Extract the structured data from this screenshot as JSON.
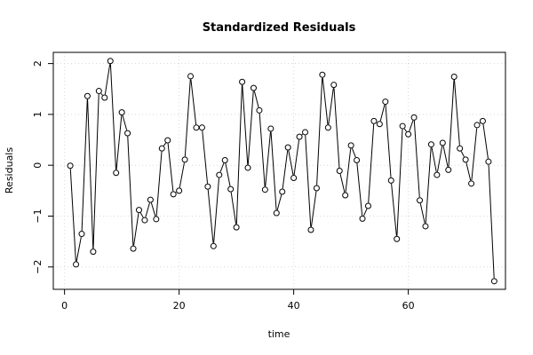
{
  "chart_data": {
    "type": "line",
    "title": "Standardized Residuals",
    "xlabel": "time",
    "ylabel": "Residuals",
    "xlim": [
      -1.96,
      76.96
    ],
    "ylim": [
      -2.44,
      2.22
    ],
    "x_ticks": [
      0,
      20,
      40,
      60
    ],
    "y_ticks": [
      -2,
      -1,
      0,
      1,
      2
    ],
    "grid": true,
    "series": [
      {
        "name": "",
        "marker": "open-circle",
        "x": [
          1,
          2,
          3,
          4,
          5,
          6,
          7,
          8,
          9,
          10,
          11,
          12,
          13,
          14,
          15,
          16,
          17,
          18,
          19,
          20,
          21,
          22,
          23,
          24,
          25,
          26,
          27,
          28,
          29,
          30,
          31,
          32,
          33,
          34,
          35,
          36,
          37,
          38,
          39,
          40,
          41,
          42,
          43,
          44,
          45,
          46,
          47,
          48,
          49,
          50,
          51,
          52,
          53,
          54,
          55,
          56,
          57,
          58,
          59,
          60,
          61,
          62,
          63,
          64,
          65,
          66,
          67,
          68,
          69,
          70,
          71,
          72,
          73,
          74,
          75
        ],
        "y": [
          -0.01,
          -1.95,
          -1.35,
          1.36,
          -1.7,
          1.46,
          1.33,
          2.05,
          -0.15,
          1.04,
          0.63,
          -1.64,
          -0.88,
          -1.08,
          -0.68,
          -1.06,
          0.33,
          0.49,
          -0.57,
          -0.5,
          0.11,
          1.75,
          0.74,
          0.74,
          -0.42,
          -1.59,
          -0.19,
          0.1,
          -0.47,
          -1.22,
          1.64,
          -0.05,
          1.52,
          1.08,
          -0.48,
          0.72,
          -0.94,
          -0.52,
          0.35,
          -0.25,
          0.56,
          0.65,
          -1.27,
          -0.45,
          1.78,
          0.74,
          1.58,
          -0.11,
          -0.59,
          0.39,
          0.1,
          -1.05,
          -0.8,
          0.87,
          0.81,
          1.25,
          -0.3,
          -1.45,
          0.77,
          0.61,
          0.94,
          -0.69,
          -1.2,
          0.41,
          -0.19,
          0.44,
          -0.09,
          1.74,
          0.33,
          0.11,
          -0.36,
          0.79,
          0.87,
          0.07,
          -2.28
        ]
      }
    ]
  }
}
